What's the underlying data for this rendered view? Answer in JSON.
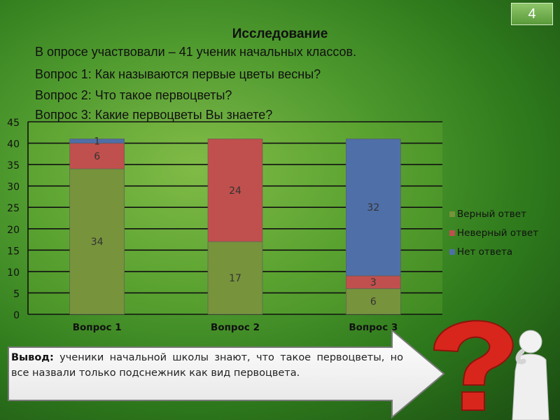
{
  "slide_number": "4",
  "heading": "Исследование",
  "lines": [
    "В опросе участвовали – 41 ученик начальных классов.",
    "Вопрос 1: Как называются первые цветы весны?",
    "Вопрос 2: Что такое первоцветы?",
    "Вопрос 3: Какие первоцветы Вы знаете?"
  ],
  "chart_data": {
    "type": "bar",
    "stacked": true,
    "categories": [
      "Вопрос 1",
      "Вопрос 2",
      "Вопрос 3"
    ],
    "series": [
      {
        "name": "Верный ответ",
        "values": [
          34,
          17,
          6
        ],
        "color": "#77933c"
      },
      {
        "name": "Неверный ответ",
        "values": [
          6,
          24,
          3
        ],
        "color": "#c0504d"
      },
      {
        "name": "Нет ответа",
        "values": [
          1,
          0,
          32
        ],
        "color": "#4f6fa8"
      }
    ],
    "data_labels": [
      [
        "34",
        "6",
        "1"
      ],
      [
        "17",
        "24",
        ""
      ],
      [
        "6",
        "3",
        "32"
      ]
    ],
    "ylim": [
      0,
      45
    ],
    "yticks": [
      0,
      5,
      10,
      15,
      20,
      25,
      30,
      35,
      40,
      45
    ],
    "grid": true,
    "legend": "right"
  },
  "conclusion": {
    "label": "Вывод:",
    "text": " ученики начальной школы знают, что такое первоцветы, но все назвали только подснежник как вид первоцвета."
  },
  "colors": {
    "background": "#4f9a2e",
    "question_mark": "#d8261c",
    "figure": "#f2f2f2"
  }
}
